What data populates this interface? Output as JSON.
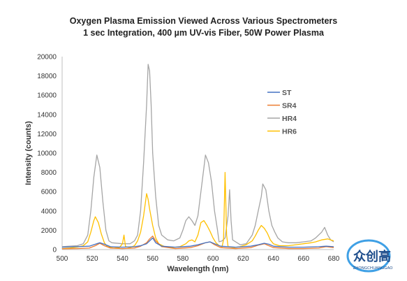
{
  "chart_data": {
    "type": "line",
    "title": "Oxygen Plasma Emission Viewed Across Various Spectrometers",
    "subtitle": "1 sec Integration, 400 µm UV-vis Fiber, 50W Power Plasma",
    "xlabel": "Wavelength (nm)",
    "ylabel": "Intensity (counts)",
    "xlim": [
      500,
      680
    ],
    "ylim": [
      0,
      20000
    ],
    "x_ticks": [
      "500",
      "520",
      "540",
      "560",
      "580",
      "600",
      "620",
      "640",
      "660",
      "680"
    ],
    "y_ticks": [
      "0",
      "2000",
      "4000",
      "6000",
      "8000",
      "10000",
      "12000",
      "14000",
      "16000",
      "18000",
      "20000"
    ],
    "grid": false,
    "legend_position": "right",
    "series": [
      {
        "name": "ST",
        "color": "#4472c4",
        "points": [
          [
            500,
            250
          ],
          [
            510,
            300
          ],
          [
            518,
            350
          ],
          [
            522,
            550
          ],
          [
            525,
            700
          ],
          [
            528,
            550
          ],
          [
            532,
            300
          ],
          [
            540,
            250
          ],
          [
            548,
            300
          ],
          [
            552,
            400
          ],
          [
            556,
            600
          ],
          [
            558,
            900
          ],
          [
            560,
            1200
          ],
          [
            562,
            700
          ],
          [
            566,
            350
          ],
          [
            575,
            250
          ],
          [
            585,
            350
          ],
          [
            590,
            500
          ],
          [
            595,
            700
          ],
          [
            598,
            800
          ],
          [
            601,
            600
          ],
          [
            605,
            350
          ],
          [
            615,
            250
          ],
          [
            625,
            350
          ],
          [
            630,
            500
          ],
          [
            634,
            650
          ],
          [
            637,
            550
          ],
          [
            640,
            350
          ],
          [
            650,
            250
          ],
          [
            660,
            250
          ],
          [
            670,
            300
          ],
          [
            675,
            350
          ],
          [
            680,
            300
          ]
        ]
      },
      {
        "name": "SR4",
        "color": "#ed7d31",
        "points": [
          [
            500,
            80
          ],
          [
            510,
            100
          ],
          [
            518,
            150
          ],
          [
            522,
            400
          ],
          [
            525,
            650
          ],
          [
            528,
            400
          ],
          [
            532,
            150
          ],
          [
            540,
            100
          ],
          [
            548,
            150
          ],
          [
            552,
            350
          ],
          [
            556,
            700
          ],
          [
            558,
            1100
          ],
          [
            560,
            1400
          ],
          [
            562,
            900
          ],
          [
            566,
            300
          ],
          [
            575,
            100
          ],
          [
            585,
            200
          ],
          [
            590,
            400
          ],
          [
            595,
            700
          ],
          [
            598,
            800
          ],
          [
            601,
            500
          ],
          [
            605,
            200
          ],
          [
            615,
            100
          ],
          [
            625,
            200
          ],
          [
            630,
            450
          ],
          [
            634,
            600
          ],
          [
            637,
            400
          ],
          [
            640,
            200
          ],
          [
            650,
            100
          ],
          [
            660,
            100
          ],
          [
            670,
            150
          ],
          [
            675,
            300
          ],
          [
            680,
            200
          ]
        ]
      },
      {
        "name": "HR4",
        "color": "#a5a5a5",
        "points": [
          [
            500,
            300
          ],
          [
            505,
            350
          ],
          [
            510,
            400
          ],
          [
            514,
            600
          ],
          [
            517,
            1500
          ],
          [
            519,
            4000
          ],
          [
            521,
            7500
          ],
          [
            523,
            9800
          ],
          [
            525,
            8500
          ],
          [
            527,
            5000
          ],
          [
            529,
            2000
          ],
          [
            531,
            900
          ],
          [
            533,
            700
          ],
          [
            540,
            600
          ],
          [
            545,
            600
          ],
          [
            548,
            900
          ],
          [
            550,
            1500
          ],
          [
            552,
            4000
          ],
          [
            554,
            9000
          ],
          [
            556,
            15000
          ],
          [
            557,
            19200
          ],
          [
            558,
            18500
          ],
          [
            559,
            15000
          ],
          [
            560,
            10000
          ],
          [
            562,
            5500
          ],
          [
            564,
            2500
          ],
          [
            566,
            1500
          ],
          [
            570,
            1000
          ],
          [
            574,
            900
          ],
          [
            578,
            1200
          ],
          [
            580,
            2000
          ],
          [
            582,
            3000
          ],
          [
            584,
            3400
          ],
          [
            586,
            3000
          ],
          [
            588,
            2500
          ],
          [
            590,
            3500
          ],
          [
            592,
            6000
          ],
          [
            594,
            8500
          ],
          [
            595,
            9800
          ],
          [
            597,
            9000
          ],
          [
            599,
            7000
          ],
          [
            601,
            4000
          ],
          [
            603,
            2000
          ],
          [
            604,
            800
          ],
          [
            606,
            900
          ],
          [
            608,
            1200
          ],
          [
            610,
            3500
          ],
          [
            611,
            6200
          ],
          [
            612,
            3000
          ],
          [
            613,
            1000
          ],
          [
            618,
            500
          ],
          [
            622,
            600
          ],
          [
            626,
            1500
          ],
          [
            628,
            2500
          ],
          [
            630,
            4000
          ],
          [
            632,
            5500
          ],
          [
            633,
            6800
          ],
          [
            635,
            6200
          ],
          [
            637,
            4000
          ],
          [
            639,
            2500
          ],
          [
            641,
            1800
          ],
          [
            643,
            1200
          ],
          [
            646,
            800
          ],
          [
            650,
            700
          ],
          [
            655,
            700
          ],
          [
            660,
            800
          ],
          [
            665,
            900
          ],
          [
            668,
            1200
          ],
          [
            672,
            1800
          ],
          [
            674,
            2300
          ],
          [
            676,
            1500
          ],
          [
            678,
            1000
          ],
          [
            680,
            800
          ]
        ]
      },
      {
        "name": "HR6",
        "color": "#ffc000",
        "points": [
          [
            500,
            100
          ],
          [
            505,
            150
          ],
          [
            510,
            250
          ],
          [
            514,
            400
          ],
          [
            517,
            800
          ],
          [
            519,
            1800
          ],
          [
            521,
            3000
          ],
          [
            522,
            3400
          ],
          [
            524,
            2800
          ],
          [
            526,
            1600
          ],
          [
            528,
            700
          ],
          [
            530,
            300
          ],
          [
            534,
            150
          ],
          [
            538,
            200
          ],
          [
            540,
            600
          ],
          [
            541,
            1500
          ],
          [
            542,
            300
          ],
          [
            545,
            200
          ],
          [
            548,
            400
          ],
          [
            550,
            900
          ],
          [
            552,
            1800
          ],
          [
            554,
            3500
          ],
          [
            556,
            5800
          ],
          [
            557,
            5200
          ],
          [
            558,
            4200
          ],
          [
            560,
            2500
          ],
          [
            562,
            1200
          ],
          [
            564,
            600
          ],
          [
            568,
            300
          ],
          [
            572,
            200
          ],
          [
            578,
            300
          ],
          [
            582,
            600
          ],
          [
            584,
            900
          ],
          [
            586,
            1000
          ],
          [
            588,
            800
          ],
          [
            590,
            1500
          ],
          [
            592,
            2800
          ],
          [
            594,
            3000
          ],
          [
            596,
            2500
          ],
          [
            598,
            1900
          ],
          [
            600,
            1200
          ],
          [
            602,
            700
          ],
          [
            604,
            400
          ],
          [
            606,
            300
          ],
          [
            607,
            1000
          ],
          [
            608,
            8000
          ],
          [
            609,
            1500
          ],
          [
            610,
            300
          ],
          [
            614,
            200
          ],
          [
            618,
            300
          ],
          [
            622,
            500
          ],
          [
            626,
            900
          ],
          [
            628,
            1400
          ],
          [
            630,
            2000
          ],
          [
            632,
            2500
          ],
          [
            634,
            2200
          ],
          [
            636,
            1700
          ],
          [
            638,
            1000
          ],
          [
            640,
            600
          ],
          [
            644,
            400
          ],
          [
            650,
            400
          ],
          [
            655,
            500
          ],
          [
            660,
            600
          ],
          [
            665,
            700
          ],
          [
            668,
            800
          ],
          [
            672,
            1000
          ],
          [
            676,
            1100
          ],
          [
            680,
            900
          ]
        ]
      }
    ]
  },
  "watermark": {
    "logo_text": "众创高",
    "logo_subtext": "ZHONGCHUANGGAO"
  }
}
